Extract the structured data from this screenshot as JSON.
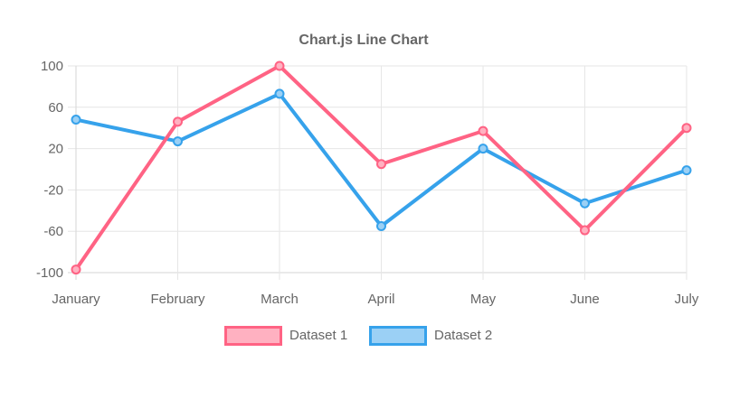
{
  "title": "Chart.js Line Chart",
  "colors": {
    "dataset1_line": "#ff6384",
    "dataset1_fill": "#ffb1c1",
    "dataset2_line": "#36a2eb",
    "dataset2_fill": "#9bd0f5",
    "gridline": "#e6e6e6",
    "axis_border": "#d6d6d6",
    "text": "#666666",
    "background": "#ffffff"
  },
  "chart_data": {
    "type": "line",
    "title": "Chart.js Line Chart",
    "categories": [
      "January",
      "February",
      "March",
      "April",
      "May",
      "June",
      "July"
    ],
    "series": [
      {
        "name": "Dataset 1",
        "color": "#ff6384",
        "fill": "#ffb1c1",
        "values": [
          -97,
          46,
          100,
          5,
          37,
          -59,
          40
        ]
      },
      {
        "name": "Dataset 2",
        "color": "#36a2eb",
        "fill": "#9bd0f5",
        "values": [
          48,
          27,
          73,
          -55,
          20,
          -33,
          -1
        ]
      }
    ],
    "xlabel": "",
    "ylabel": "",
    "ylim": [
      -100,
      100
    ],
    "yticks": [
      100,
      60,
      20,
      -20,
      -60,
      -100
    ],
    "grid": true,
    "legend_position": "bottom",
    "point_style": "circle",
    "line_width": 4
  }
}
